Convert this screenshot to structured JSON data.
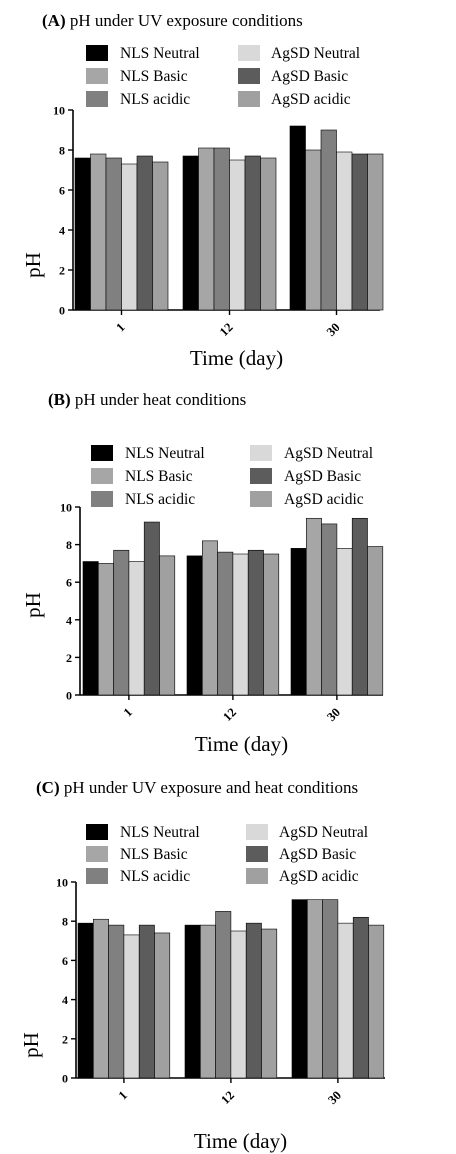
{
  "chart_data": [
    {
      "type": "bar",
      "letter": "(A)",
      "title": "pH under UV exposure conditions",
      "xlabel": "Time (day)",
      "ylabel": "pH",
      "categories": [
        "1",
        "12",
        "30"
      ],
      "ylim": [
        0,
        10
      ],
      "yticks": [
        "0",
        "2",
        "4",
        "6",
        "8",
        "10"
      ],
      "grid": false,
      "legend_position": "top",
      "series": [
        {
          "name": "NLS Neutral",
          "color": "#000000",
          "values": [
            7.6,
            7.7,
            9.2
          ]
        },
        {
          "name": "NLS Basic",
          "color": "#a6a6a6",
          "values": [
            7.8,
            8.1,
            8.0
          ]
        },
        {
          "name": "NLS acidic",
          "color": "#808080",
          "values": [
            7.6,
            8.1,
            9.0
          ]
        },
        {
          "name": "AgSD Neutral",
          "color": "#d9d9d9",
          "values": [
            7.3,
            7.5,
            7.9
          ]
        },
        {
          "name": "AgSD Basic",
          "color": "#5c5c5c",
          "values": [
            7.7,
            7.7,
            7.8
          ]
        },
        {
          "name": "AgSD acidic",
          "color": "#a0a0a0",
          "values": [
            7.4,
            7.6,
            7.8
          ]
        }
      ]
    },
    {
      "type": "bar",
      "letter": "(B)",
      "title": "pH under heat conditions",
      "xlabel": "Time (day)",
      "ylabel": "pH",
      "categories": [
        "1",
        "12",
        "30"
      ],
      "ylim": [
        0,
        10
      ],
      "yticks": [
        "0",
        "2",
        "4",
        "6",
        "8",
        "10"
      ],
      "grid": false,
      "legend_position": "top",
      "series": [
        {
          "name": "NLS Neutral",
          "color": "#000000",
          "values": [
            7.1,
            7.4,
            7.8
          ]
        },
        {
          "name": "NLS Basic",
          "color": "#a6a6a6",
          "values": [
            7.0,
            8.2,
            9.4
          ]
        },
        {
          "name": "NLS acidic",
          "color": "#808080",
          "values": [
            7.7,
            7.6,
            9.1
          ]
        },
        {
          "name": "AgSD Neutral",
          "color": "#d9d9d9",
          "values": [
            7.1,
            7.5,
            7.8
          ]
        },
        {
          "name": "AgSD Basic",
          "color": "#5c5c5c",
          "values": [
            9.2,
            7.7,
            9.4
          ]
        },
        {
          "name": "AgSD acidic",
          "color": "#a0a0a0",
          "values": [
            7.4,
            7.5,
            7.9
          ]
        }
      ]
    },
    {
      "type": "bar",
      "letter": "(C)",
      "title": "pH under UV exposure and heat conditions",
      "xlabel": "Time (day)",
      "ylabel": "pH",
      "categories": [
        "1",
        "12",
        "30"
      ],
      "ylim": [
        0,
        10
      ],
      "yticks": [
        "0",
        "2",
        "4",
        "6",
        "8",
        "10"
      ],
      "grid": false,
      "legend_position": "top",
      "series": [
        {
          "name": "NLS Neutral",
          "color": "#000000",
          "values": [
            7.9,
            7.8,
            9.1
          ]
        },
        {
          "name": "NLS Basic",
          "color": "#a6a6a6",
          "values": [
            8.1,
            7.8,
            9.1
          ]
        },
        {
          "name": "NLS acidic",
          "color": "#808080",
          "values": [
            7.8,
            8.5,
            9.1
          ]
        },
        {
          "name": "AgSD Neutral",
          "color": "#d9d9d9",
          "values": [
            7.3,
            7.5,
            7.9
          ]
        },
        {
          "name": "AgSD Basic",
          "color": "#5c5c5c",
          "values": [
            7.8,
            7.9,
            8.2
          ]
        },
        {
          "name": "AgSD acidic",
          "color": "#a0a0a0",
          "values": [
            7.4,
            7.6,
            7.8
          ]
        }
      ]
    }
  ]
}
